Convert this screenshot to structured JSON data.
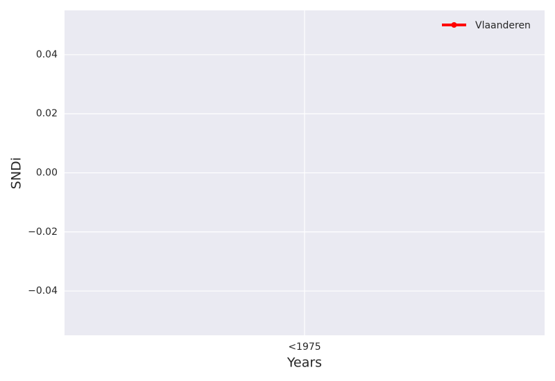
{
  "chart_data": {
    "type": "line",
    "xlabel": "Years",
    "ylabel": "SNDi",
    "categories": [
      "<1975"
    ],
    "series": [
      {
        "name": "Vlaanderen",
        "color": "#ff0000",
        "values": [
          null
        ]
      }
    ],
    "ylim": [
      -0.055,
      0.055
    ],
    "yticks": [
      {
        "value": -0.04,
        "label": "−0.04"
      },
      {
        "value": -0.02,
        "label": "−0.02"
      },
      {
        "value": 0,
        "label": "0.00"
      },
      0.02,
      0.04
    ],
    "grid": true,
    "legend": "upper right"
  }
}
